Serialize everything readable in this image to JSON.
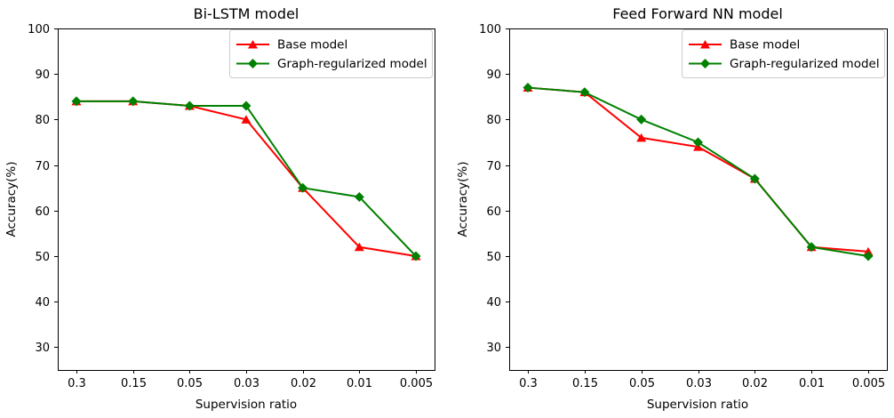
{
  "figure": {
    "background": "#ffffff",
    "axis_color": "#000000",
    "legend_border_color": "#cccccc"
  },
  "chart_data": [
    {
      "type": "line",
      "title": "Bi-LSTM model",
      "xlabel": "Supervision ratio",
      "ylabel": "Accuracy(%)",
      "categories": [
        "0.3",
        "0.15",
        "0.05",
        "0.03",
        "0.02",
        "0.01",
        "0.005"
      ],
      "yticks": [
        30,
        40,
        50,
        60,
        70,
        80,
        90,
        100
      ],
      "ylim": [
        25,
        100
      ],
      "grid": false,
      "legend_position": "upper right",
      "series": [
        {
          "name": "Base model",
          "color": "#ff0000",
          "marker": "triangle",
          "values": [
            84,
            84,
            83,
            80,
            65,
            52,
            50
          ]
        },
        {
          "name": "Graph-regularized model",
          "color": "#008000",
          "marker": "diamond",
          "values": [
            84,
            84,
            83,
            83,
            65,
            63,
            50
          ]
        }
      ]
    },
    {
      "type": "line",
      "title": "Feed Forward NN model",
      "xlabel": "Supervision ratio",
      "ylabel": "Accuracy(%)",
      "categories": [
        "0.3",
        "0.15",
        "0.05",
        "0.03",
        "0.02",
        "0.01",
        "0.005"
      ],
      "yticks": [
        30,
        40,
        50,
        60,
        70,
        80,
        90,
        100
      ],
      "ylim": [
        25,
        100
      ],
      "grid": false,
      "legend_position": "upper right",
      "series": [
        {
          "name": "Base model",
          "color": "#ff0000",
          "marker": "triangle",
          "values": [
            87,
            86,
            76,
            74,
            67,
            52,
            51
          ]
        },
        {
          "name": "Graph-regularized model",
          "color": "#008000",
          "marker": "diamond",
          "values": [
            87,
            86,
            80,
            75,
            67,
            52,
            50
          ]
        }
      ]
    }
  ]
}
